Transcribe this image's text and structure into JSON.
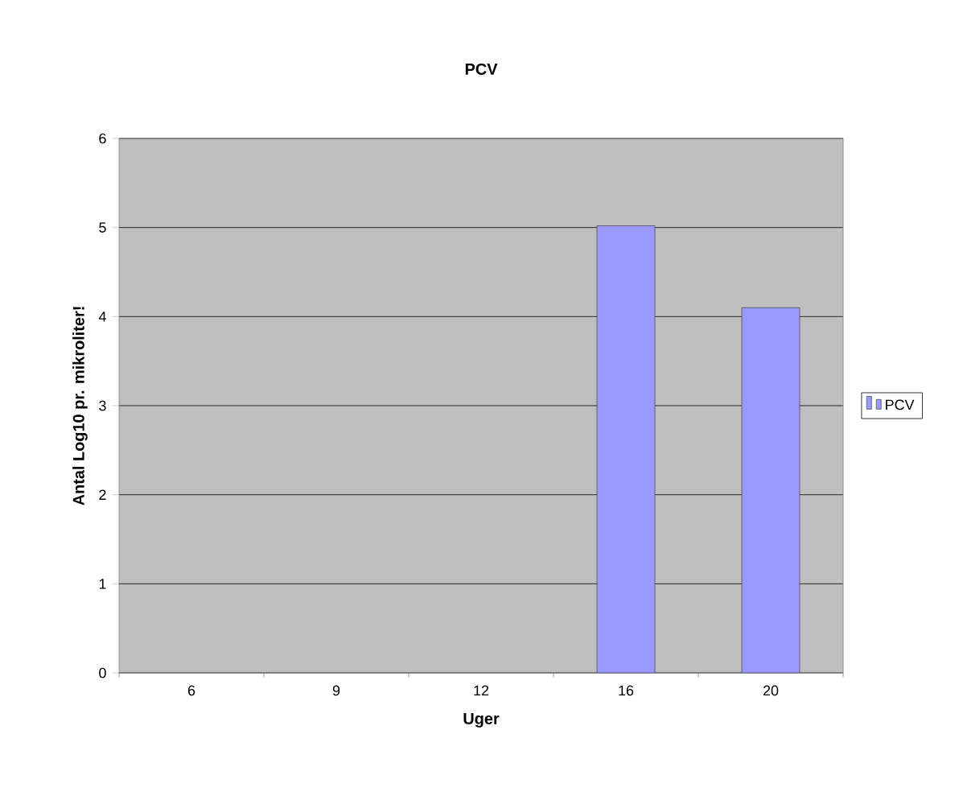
{
  "chart_data": {
    "type": "bar",
    "title": "PCV",
    "xlabel": "Uger",
    "ylabel": "Antal Log10 pr. mikroliter!",
    "categories": [
      "6",
      "9",
      "12",
      "16",
      "20"
    ],
    "series": [
      {
        "name": "PCV",
        "color": "#9999ff",
        "values": [
          null,
          null,
          null,
          5.02,
          4.1
        ]
      }
    ],
    "ylim": [
      0,
      6
    ],
    "yticks": [
      0,
      1,
      2,
      3,
      4,
      5,
      6
    ],
    "grid": "y",
    "legend": "right"
  }
}
